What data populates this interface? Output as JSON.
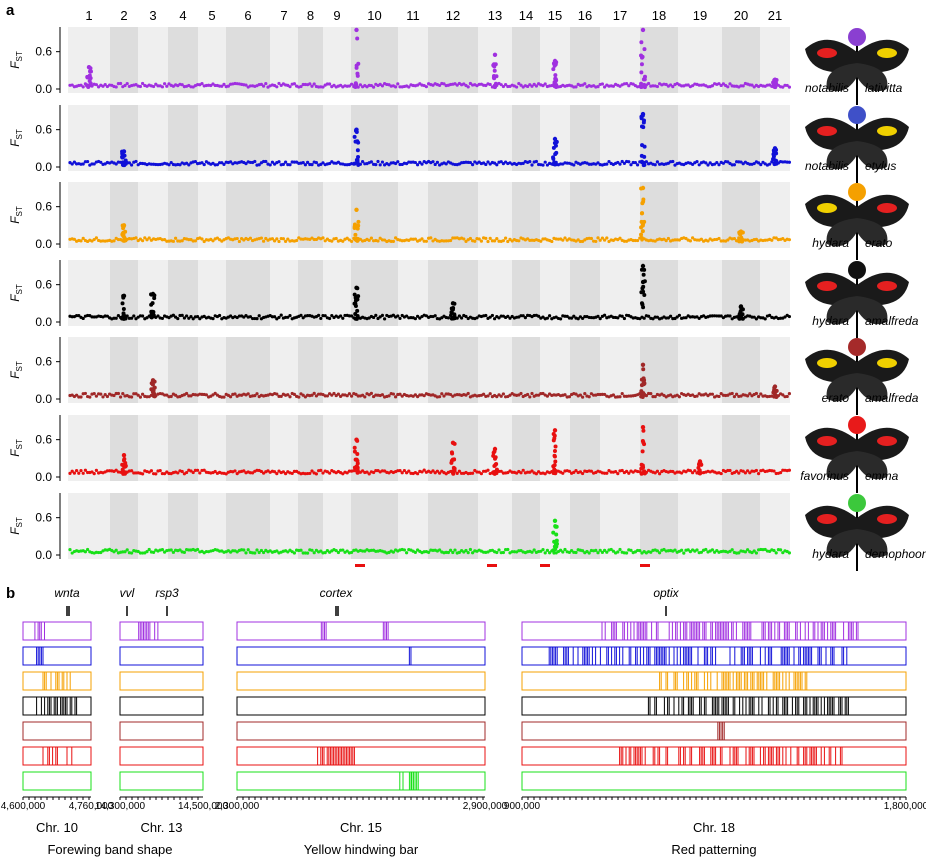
{
  "panel_labels": {
    "a": "a",
    "b": "b"
  },
  "panel_a": {
    "chromosomes": [
      "1",
      "2",
      "3",
      "4",
      "5",
      "6",
      "7",
      "8",
      "9",
      "10",
      "11",
      "12",
      "13",
      "14",
      "15",
      "16",
      "17",
      "18",
      "19",
      "20",
      "21"
    ],
    "y_axis_label_main": "F",
    "y_axis_label_sub": "ST",
    "y_ticks": [
      "0.0",
      "0.6"
    ],
    "band_colors": {
      "light": "#efefef",
      "dark": "#dddddd"
    },
    "comparisons": [
      {
        "left": "notabilis",
        "right": "lativitta",
        "color": "#a030e0",
        "dot_color": "#8a3fd1"
      },
      {
        "left": "notabilis",
        "right": "etylus",
        "color": "#1010d8",
        "dot_color": "#3f50c8"
      },
      {
        "left": "hydara",
        "right": "erato",
        "color": "#f5a000",
        "dot_color": "#f5a000"
      },
      {
        "left": "hydara",
        "right": "amalfreda",
        "color": "#000000",
        "dot_color": "#111111"
      },
      {
        "left": "erato",
        "right": "amalfreda",
        "color": "#a02828",
        "dot_color": "#a52a2a"
      },
      {
        "left": "favorinus",
        "right": "emma",
        "color": "#e81010",
        "dot_color": "#e81a1a"
      },
      {
        "left": "hydara",
        "right": "demophoon",
        "color": "#18e018",
        "dot_color": "#3cc83c"
      }
    ]
  },
  "panel_b": {
    "genes": [
      "wnta",
      "vvl",
      "rsp3",
      "cortex",
      "optix"
    ],
    "regions": [
      {
        "chromosome": "Chr. 10",
        "start_label": "4,600,000",
        "end_label": "4,760,000"
      },
      {
        "chromosome": "Chr. 13",
        "start_label": "14,300,000",
        "end_label": "14,500,000"
      },
      {
        "chromosome": "Chr. 15",
        "start_label": "2,300,000",
        "end_label": "2,900,000"
      },
      {
        "chromosome": "Chr. 18",
        "start_label": "900,000",
        "end_label": "1,800,000"
      }
    ],
    "traits": [
      "Forewing band shape",
      "Yellow hindwing bar",
      "Red patterning"
    ]
  },
  "chart_data": {
    "type": "scatter",
    "title": "",
    "xlabel": "",
    "ylabel": "FST",
    "ylim": [
      0,
      1
    ],
    "categories": [
      "1",
      "2",
      "3",
      "4",
      "5",
      "6",
      "7",
      "8",
      "9",
      "10",
      "11",
      "12",
      "13",
      "14",
      "15",
      "16",
      "17",
      "18",
      "19",
      "20",
      "21"
    ],
    "series": [
      {
        "name": "notabilis lativitta",
        "baseline": 0.03,
        "peaks": {
          "1": 0.35,
          "10": 0.95,
          "13": 0.55,
          "15": 0.45,
          "18": 0.95,
          "21": 0.15
        }
      },
      {
        "name": "notabilis etylus",
        "baseline": 0.03,
        "peaks": {
          "2": 0.25,
          "10": 0.6,
          "15": 0.45,
          "18": 0.85,
          "21": 0.3
        }
      },
      {
        "name": "hydara erato",
        "baseline": 0.04,
        "peaks": {
          "2": 0.3,
          "10": 0.55,
          "18": 0.9,
          "20": 0.2
        }
      },
      {
        "name": "hydara amalfreda",
        "baseline": 0.05,
        "peaks": {
          "2": 0.42,
          "3": 0.45,
          "10": 0.55,
          "12": 0.3,
          "18": 0.9,
          "20": 0.25
        }
      },
      {
        "name": "erato amalfreda",
        "baseline": 0.03,
        "peaks": {
          "3": 0.3,
          "18": 0.55,
          "21": 0.2
        }
      },
      {
        "name": "favorinus emma",
        "baseline": 0.05,
        "peaks": {
          "2": 0.35,
          "10": 0.6,
          "12": 0.55,
          "13": 0.45,
          "15": 0.75,
          "18": 0.8,
          "19": 0.25
        }
      },
      {
        "name": "hydara demophoon",
        "baseline": 0.03,
        "peaks": {
          "15": 0.55
        }
      }
    ]
  }
}
